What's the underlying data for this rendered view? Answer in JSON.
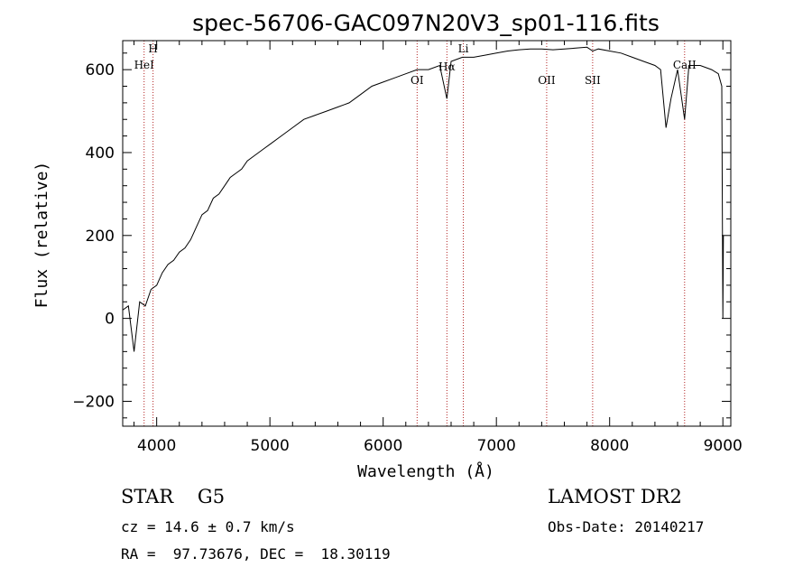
{
  "chart_data": {
    "type": "line",
    "title": "spec-56706-GAC097N20V3_sp01-116.fits",
    "xlabel": "Wavelength (Å)",
    "ylabel": "Flux (relative)",
    "xlim": [
      3700,
      9070
    ],
    "ylim": [
      -260,
      670
    ],
    "x_ticks": [
      4000,
      5000,
      6000,
      7000,
      8000,
      9000
    ],
    "y_ticks": [
      -200,
      0,
      200,
      400,
      600
    ],
    "grid": false,
    "series": [
      {
        "x": [
          3700,
          3750,
          3800,
          3850,
          3900,
          3950,
          4000,
          4050,
          4100,
          4150,
          4200,
          4250,
          4300,
          4350,
          4400,
          4450,
          4500,
          4550,
          4600,
          4650,
          4700,
          4750,
          4800,
          4850,
          4900,
          4950,
          5000,
          5100,
          5200,
          5300,
          5400,
          5500,
          5600,
          5700,
          5800,
          5900,
          6000,
          6100,
          6200,
          6300,
          6400,
          6500,
          6563,
          6600,
          6700,
          6800,
          6900,
          7000,
          7100,
          7200,
          7300,
          7400,
          7500,
          7600,
          7700,
          7800,
          7850,
          7900,
          8000,
          8100,
          8200,
          8300,
          8400,
          8450,
          8498,
          8542,
          8600,
          8662,
          8700,
          8800,
          8900,
          8960,
          8990,
          9000,
          9005
        ],
        "y": [
          20,
          30,
          -80,
          40,
          30,
          70,
          80,
          110,
          130,
          140,
          160,
          170,
          190,
          220,
          250,
          260,
          290,
          300,
          320,
          340,
          350,
          360,
          380,
          390,
          400,
          410,
          420,
          440,
          460,
          480,
          490,
          500,
          510,
          520,
          540,
          560,
          570,
          580,
          590,
          600,
          600,
          610,
          530,
          620,
          630,
          630,
          635,
          640,
          645,
          648,
          650,
          650,
          648,
          650,
          652,
          654,
          645,
          650,
          645,
          640,
          630,
          620,
          610,
          600,
          460,
          530,
          600,
          480,
          610,
          610,
          600,
          590,
          560,
          0,
          200
        ]
      }
    ],
    "spectral_lines": [
      {
        "label": "HeI",
        "wavelength": 3889
      },
      {
        "label": "H",
        "wavelength": 3968
      },
      {
        "label": "OI",
        "wavelength": 6300
      },
      {
        "label": "Hα",
        "wavelength": 6563
      },
      {
        "label": "Li",
        "wavelength": 6708
      },
      {
        "label": "OII",
        "wavelength": 7444
      },
      {
        "label": "SII",
        "wavelength": 7850
      },
      {
        "label": "CaII",
        "wavelength": 8662
      }
    ]
  },
  "info": {
    "object_class": "STAR    G5",
    "survey": "LAMOST DR2",
    "redshift": "cz = 14.6 ± 0.7 km/s",
    "obs_date": "Obs-Date: 20140217",
    "coords": "RA =  97.73676, DEC =  18.30119"
  },
  "colors": {
    "line": "#000000",
    "marker": "#b22222"
  }
}
